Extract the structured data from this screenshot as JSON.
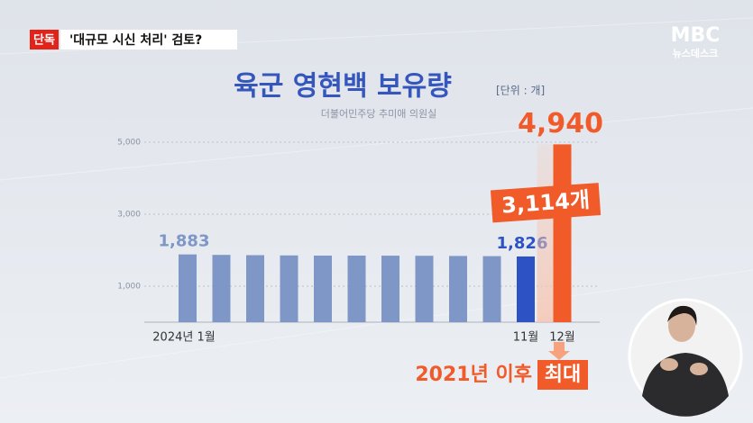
{
  "header": {
    "badge": "단독",
    "headline": "'대규모 시신 처리' 검토?"
  },
  "logo": {
    "brand": "MBC",
    "program": "뉴스데스크"
  },
  "chart_data": {
    "type": "bar",
    "title": "육군 영현백 보유량",
    "unit": "[단위 : 개]",
    "subtitle": "더불어민주당 추미애 의원실",
    "categories": [
      "2024년 1월",
      null,
      null,
      null,
      null,
      null,
      null,
      null,
      null,
      null,
      "11월",
      "12월"
    ],
    "values": [
      1883,
      1870,
      1862,
      1855,
      1850,
      1850,
      1848,
      1845,
      1840,
      1835,
      1826,
      4940
    ],
    "value_labels": [
      "1,883",
      null,
      null,
      null,
      null,
      null,
      null,
      null,
      null,
      null,
      "1,826",
      "4,940"
    ],
    "colors": [
      "#7f97c6",
      "#7f97c6",
      "#7f97c6",
      "#7f97c6",
      "#7f97c6",
      "#7f97c6",
      "#7f97c6",
      "#7f97c6",
      "#7f97c6",
      "#7f97c6",
      "#2d52c4",
      "#f15a29"
    ],
    "ylim": [
      0,
      5500
    ],
    "yticks": [
      {
        "value": 1000,
        "label": "1,000"
      },
      {
        "value": 3000,
        "label": "3,000"
      },
      {
        "value": 5000,
        "label": "5,000"
      }
    ],
    "grid": true,
    "annotations": {
      "increase": "3,114개",
      "note": "2021년 이후",
      "note_highlight": "최대"
    }
  }
}
